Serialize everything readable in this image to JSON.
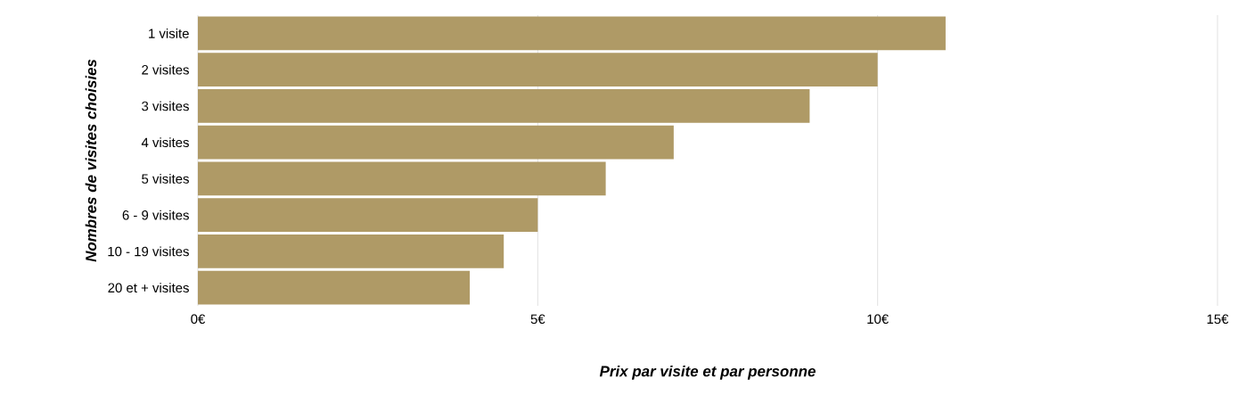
{
  "chart_data": {
    "type": "bar",
    "orientation": "horizontal",
    "xlabel": "Prix par visite et par personne",
    "ylabel": "Nombres de visites choisies",
    "categories": [
      "1 visite",
      "2 visites",
      "3 visites",
      "4 visites",
      "5 visites",
      "6 - 9 visites",
      "10 - 19 visites",
      "20 et + visites"
    ],
    "values": [
      11,
      10,
      9,
      7,
      6,
      5,
      4.5,
      4
    ],
    "color": "#af9a66",
    "xlim": [
      0,
      15
    ],
    "xticks": [
      {
        "value": 0,
        "label": "0€"
      },
      {
        "value": 5,
        "label": "5€"
      },
      {
        "value": 10,
        "label": "10€"
      },
      {
        "value": 15,
        "label": "15€"
      }
    ],
    "grid": "x"
  }
}
